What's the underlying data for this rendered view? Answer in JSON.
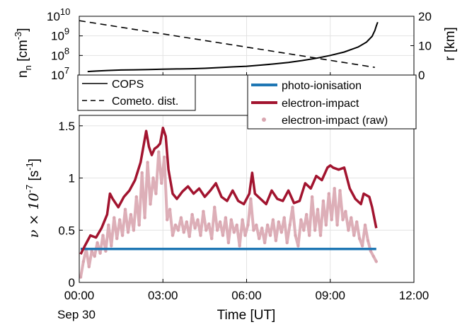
{
  "chart_data": [
    {
      "type": "line",
      "position": "top",
      "ylabel_left": "n",
      "ylabel_left_sub": "n",
      "ylabel_left_unit": "[cm",
      "ylabel_left_unit_sup": "-3",
      "ylabel_left_unit_end": "]",
      "ylabel_right": "r [km]",
      "yscale_left": "log",
      "ylim_left": [
        10000000,
        10000000000
      ],
      "yticks_left": [
        {
          "value": 10000000,
          "label": "10",
          "exp": "7"
        },
        {
          "value": 100000000,
          "label": "10",
          "exp": "8"
        },
        {
          "value": 1000000000,
          "label": "10",
          "exp": "9"
        },
        {
          "value": 10000000000,
          "label": "10",
          "exp": "10"
        }
      ],
      "ylim_right": [
        0,
        20
      ],
      "yticks_right": [
        {
          "value": 0,
          "label": "0"
        },
        {
          "value": 10,
          "label": "10"
        },
        {
          "value": 20,
          "label": "20"
        }
      ],
      "xlim_hours": [
        0,
        12
      ],
      "grid": true,
      "legend_placement": "bottom-left (below axes)",
      "series": [
        {
          "name": "COPS",
          "axis": "left",
          "style": "solid",
          "color": "#000000",
          "x_hours": [
            0.3,
            0.6,
            1.0,
            1.5,
            2.0,
            2.5,
            3.0,
            3.5,
            4.0,
            4.5,
            5.0,
            5.5,
            6.0,
            6.5,
            7.0,
            7.5,
            8.0,
            8.5,
            9.0,
            9.5,
            10.0,
            10.3,
            10.5,
            10.6,
            10.65,
            10.7
          ],
          "values": [
            15000000,
            16000000,
            17000000,
            18000000,
            18500000,
            19000000,
            20000000,
            20500000,
            21000000,
            22000000,
            24000000,
            26000000,
            28000000,
            32000000,
            37000000,
            44000000,
            55000000,
            72000000,
            100000000,
            150000000,
            270000000,
            480000000,
            950000000,
            1900000000,
            3200000000,
            5000000000
          ]
        },
        {
          "name": "Cometo. dist.",
          "axis": "right",
          "style": "dashed",
          "color": "#000000",
          "x_hours": [
            0,
            10.6
          ],
          "values": [
            18.5,
            2.6
          ]
        }
      ]
    },
    {
      "type": "line",
      "position": "bottom",
      "ylabel": "ν × 10",
      "ylabel_sup": "-7",
      "ylabel_unit": "[s",
      "ylabel_unit_sup": "-1",
      "ylabel_unit_end": "]",
      "xlabel": "Time [UT]",
      "date_label": "Sep 30",
      "ylim": [
        0,
        1.6
      ],
      "yticks": [
        {
          "value": 0,
          "label": "0"
        },
        {
          "value": 0.5,
          "label": "0.5"
        },
        {
          "value": 1,
          "label": "1"
        },
        {
          "value": 1.5,
          "label": "1.5"
        }
      ],
      "xlim_hours": [
        0,
        12
      ],
      "xticks": [
        {
          "value": 0,
          "label": "00:00"
        },
        {
          "value": 3,
          "label": "03:00"
        },
        {
          "value": 6,
          "label": "06:00"
        },
        {
          "value": 9,
          "label": "09:00"
        },
        {
          "value": 12,
          "label": "12:00"
        }
      ],
      "grid": true,
      "legend_placement": "top-right (above axes)",
      "series": [
        {
          "name": "photo-ionisation",
          "style": "solid-thick",
          "color": "#1f77b4",
          "x_hours": [
            0.05,
            10.65
          ],
          "values": [
            0.32,
            0.32
          ]
        },
        {
          "name": "electron-impact",
          "style": "solid-thick",
          "color": "#a2142f",
          "x_hours": [
            0.05,
            0.2,
            0.4,
            0.6,
            0.8,
            1.0,
            1.1,
            1.2,
            1.4,
            1.6,
            1.8,
            2.0,
            2.2,
            2.4,
            2.5,
            2.6,
            2.7,
            2.8,
            2.9,
            3.0,
            3.1,
            3.2,
            3.35,
            3.5,
            3.7,
            3.9,
            4.1,
            4.3,
            4.5,
            4.7,
            4.9,
            5.1,
            5.3,
            5.5,
            5.7,
            5.9,
            6.1,
            6.2,
            6.3,
            6.5,
            6.7,
            6.9,
            7.1,
            7.3,
            7.5,
            7.7,
            7.9,
            8.1,
            8.3,
            8.5,
            8.7,
            8.9,
            9.0,
            9.1,
            9.3,
            9.5,
            9.7,
            9.9,
            10.1,
            10.2,
            10.4,
            10.5,
            10.65
          ],
          "values": [
            0.27,
            0.35,
            0.45,
            0.43,
            0.52,
            0.65,
            0.85,
            0.8,
            0.72,
            0.82,
            0.88,
            0.98,
            1.15,
            1.45,
            1.3,
            1.22,
            1.28,
            1.3,
            1.33,
            1.48,
            1.4,
            1.08,
            0.85,
            0.8,
            0.87,
            0.92,
            0.85,
            0.9,
            0.82,
            0.88,
            0.95,
            0.82,
            0.78,
            0.88,
            0.78,
            0.75,
            0.85,
            1.05,
            0.85,
            0.8,
            0.75,
            0.88,
            0.8,
            0.78,
            0.88,
            0.76,
            0.78,
            0.95,
            0.9,
            1.02,
            0.98,
            1.1,
            1.12,
            1.1,
            1.08,
            1.1,
            0.9,
            0.8,
            0.75,
            0.85,
            0.82,
            0.72,
            0.52
          ]
        },
        {
          "name": "electron-impact (raw)",
          "style": "dots",
          "color": "#d9a6b0",
          "x_hours": [
            0.05,
            0.15,
            0.25,
            0.35,
            0.45,
            0.55,
            0.65,
            0.75,
            0.85,
            0.95,
            1.05,
            1.15,
            1.25,
            1.35,
            1.45,
            1.55,
            1.65,
            1.75,
            1.85,
            1.95,
            2.05,
            2.15,
            2.25,
            2.35,
            2.45,
            2.55,
            2.65,
            2.75,
            2.85,
            2.95,
            3.05,
            3.15,
            3.25,
            3.35,
            3.45,
            3.55,
            3.65,
            3.75,
            3.85,
            3.95,
            4.05,
            4.15,
            4.25,
            4.35,
            4.45,
            4.55,
            4.65,
            4.75,
            4.85,
            4.95,
            5.05,
            5.15,
            5.25,
            5.35,
            5.45,
            5.55,
            5.65,
            5.75,
            5.85,
            5.95,
            6.05,
            6.15,
            6.25,
            6.35,
            6.45,
            6.55,
            6.65,
            6.75,
            6.85,
            6.95,
            7.05,
            7.15,
            7.25,
            7.35,
            7.45,
            7.55,
            7.65,
            7.75,
            7.85,
            7.95,
            8.05,
            8.15,
            8.25,
            8.35,
            8.45,
            8.55,
            8.65,
            8.75,
            8.85,
            8.95,
            9.05,
            9.15,
            9.25,
            9.35,
            9.45,
            9.55,
            9.65,
            9.75,
            9.85,
            9.95,
            10.05,
            10.15,
            10.25,
            10.35,
            10.45,
            10.55,
            10.65
          ],
          "values": [
            0.05,
            0.2,
            0.32,
            0.15,
            0.3,
            0.25,
            0.38,
            0.28,
            0.45,
            0.3,
            0.55,
            0.35,
            0.62,
            0.42,
            0.6,
            0.45,
            0.7,
            0.48,
            0.65,
            0.5,
            0.82,
            0.55,
            1.05,
            0.62,
            1.15,
            0.75,
            1.0,
            0.85,
            1.25,
            0.95,
            1.2,
            0.6,
            0.7,
            0.45,
            0.55,
            0.5,
            0.62,
            0.48,
            0.58,
            0.44,
            0.65,
            0.52,
            0.6,
            0.45,
            0.68,
            0.5,
            0.56,
            0.42,
            0.72,
            0.5,
            0.58,
            0.45,
            0.62,
            0.38,
            0.6,
            0.48,
            0.55,
            0.35,
            0.6,
            0.45,
            0.55,
            0.8,
            0.5,
            0.55,
            0.42,
            0.52,
            0.38,
            0.55,
            0.45,
            0.6,
            0.4,
            0.58,
            0.48,
            0.62,
            0.38,
            0.55,
            0.72,
            0.45,
            0.35,
            0.6,
            0.5,
            0.65,
            0.45,
            0.82,
            0.5,
            0.7,
            0.45,
            0.78,
            0.55,
            0.85,
            0.6,
            0.9,
            0.55,
            0.88,
            0.6,
            0.68,
            0.5,
            0.62,
            0.45,
            0.58,
            0.42,
            0.35,
            0.55,
            0.4,
            0.3,
            0.25,
            0.2
          ]
        }
      ]
    }
  ]
}
